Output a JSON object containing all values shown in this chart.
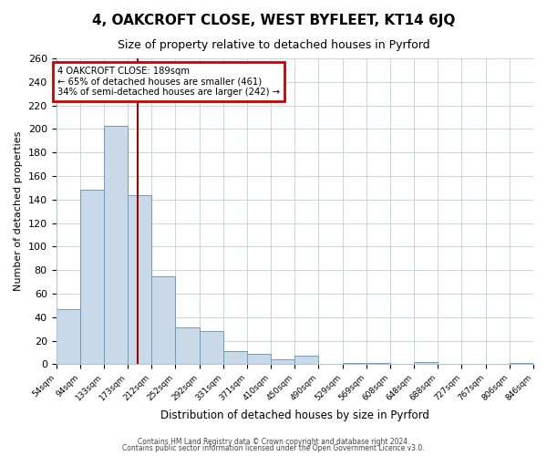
{
  "title": "4, OAKCROFT CLOSE, WEST BYFLEET, KT14 6JQ",
  "subtitle": "Size of property relative to detached houses in Pyrford",
  "xlabel": "Distribution of detached houses by size in Pyrford",
  "ylabel": "Number of detached properties",
  "bar_values": [
    47,
    148,
    203,
    144,
    75,
    31,
    28,
    11,
    9,
    4,
    7,
    0,
    1,
    1,
    0,
    2,
    0,
    0,
    0,
    1
  ],
  "bin_labels": [
    "54sqm",
    "94sqm",
    "133sqm",
    "173sqm",
    "212sqm",
    "252sqm",
    "292sqm",
    "331sqm",
    "371sqm",
    "410sqm",
    "450sqm",
    "490sqm",
    "529sqm",
    "569sqm",
    "608sqm",
    "648sqm",
    "688sqm",
    "727sqm",
    "767sqm",
    "806sqm",
    "846sqm"
  ],
  "bar_color": "#c9d9e8",
  "bar_edge_color": "#6a9bbf",
  "vline_x": 3,
  "vline_color": "#990000",
  "ylim": [
    0,
    260
  ],
  "yticks": [
    0,
    20,
    40,
    60,
    80,
    100,
    120,
    140,
    160,
    180,
    200,
    220,
    240,
    260
  ],
  "annotation_title": "4 OAKCROFT CLOSE: 189sqm",
  "annotation_line1": "← 65% of detached houses are smaller (461)",
  "annotation_line2": "34% of semi-detached houses are larger (242) →",
  "annotation_box_color": "#cc0000",
  "footnote1": "Contains HM Land Registry data © Crown copyright and database right 2024.",
  "footnote2": "Contains public sector information licensed under the Open Government Licence v3.0.",
  "bin_width": 1,
  "n_bins": 20
}
